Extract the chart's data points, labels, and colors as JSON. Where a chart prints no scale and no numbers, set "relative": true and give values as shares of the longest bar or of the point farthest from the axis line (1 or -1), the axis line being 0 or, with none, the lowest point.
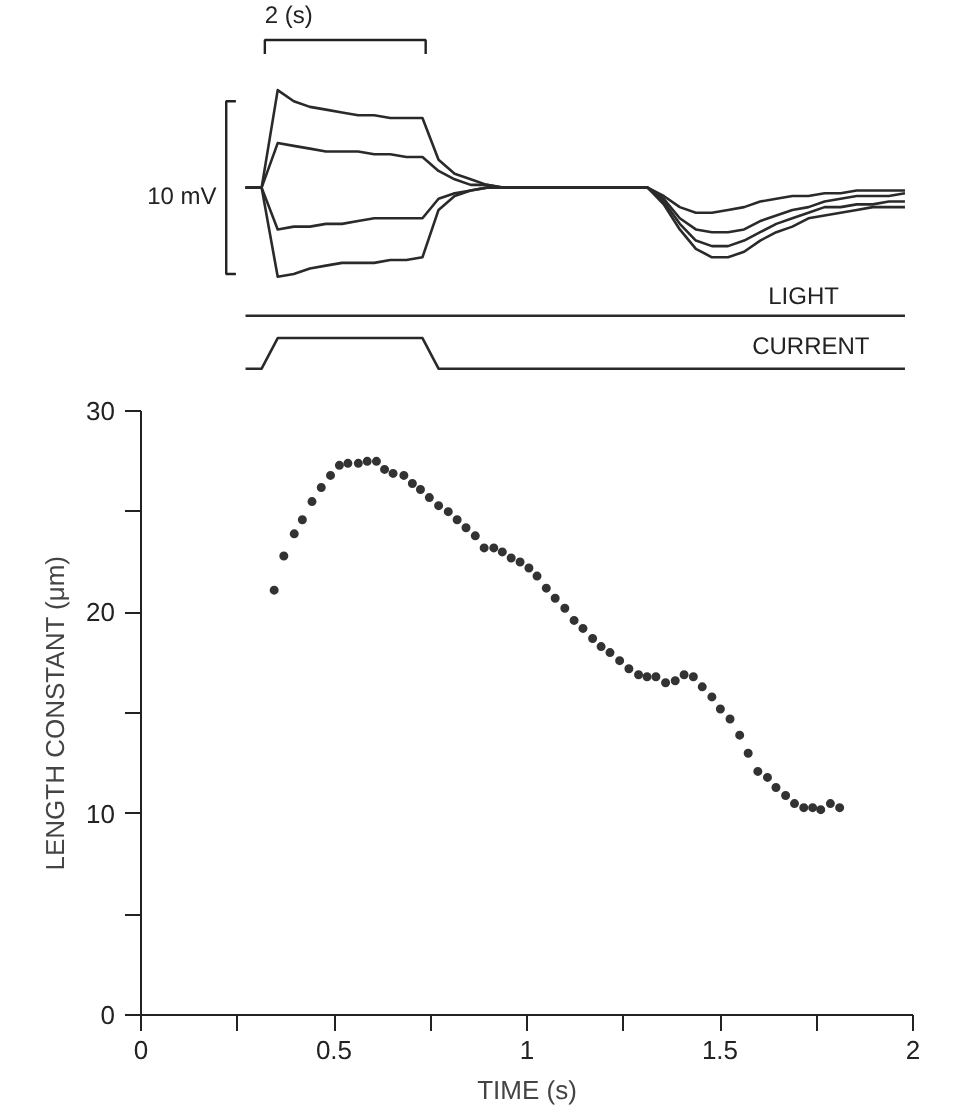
{
  "chart_data": [
    {
      "type": "line",
      "relative": true,
      "categories": [
        null,
        null,
        null,
        null,
        null,
        null,
        null,
        null,
        null,
        null,
        null,
        null,
        null,
        null,
        null,
        null,
        null,
        null,
        null,
        null,
        null,
        null,
        null,
        null,
        null,
        null,
        null,
        null,
        null,
        null,
        null,
        null,
        null,
        null,
        null,
        null,
        null,
        null,
        null,
        null,
        null,
        null
      ],
      "series": [
        {
          "color": "#2a2a2a",
          "values": [
            0.65,
            0.65,
            1,
            0.96,
            0.94,
            0.93,
            0.92,
            0.91,
            0.91,
            0.9,
            0.9,
            0.9,
            0.75,
            0.7,
            0.68,
            0.66,
            0.65,
            0.65,
            0.65,
            0.65,
            0.65,
            0.65,
            0.65,
            0.65,
            0.65,
            0.65,
            0.62,
            0.58,
            0.56,
            0.56,
            0.57,
            0.58,
            0.6,
            0.61,
            0.62,
            0.62,
            0.63,
            0.63,
            0.64,
            0.64,
            0.64,
            0.64
          ]
        },
        {
          "color": "#2a2a2a",
          "values": [
            0.65,
            0.65,
            0.81,
            0.8,
            0.79,
            0.78,
            0.78,
            0.78,
            0.77,
            0.77,
            0.76,
            0.76,
            0.71,
            0.68,
            0.66,
            0.66,
            0.65,
            0.65,
            0.65,
            0.65,
            0.65,
            0.65,
            0.65,
            0.65,
            0.65,
            0.65,
            0.61,
            0.54,
            0.5,
            0.49,
            0.49,
            0.5,
            0.53,
            0.55,
            0.57,
            0.58,
            0.6,
            0.61,
            0.62,
            0.62,
            0.62,
            0.63
          ]
        },
        {
          "color": "#2a2a2a",
          "values": [
            0.65,
            0.65,
            0.5,
            0.51,
            0.51,
            0.52,
            0.52,
            0.53,
            0.54,
            0.54,
            0.54,
            0.54,
            0.61,
            0.63,
            0.64,
            0.65,
            0.65,
            0.65,
            0.65,
            0.65,
            0.65,
            0.65,
            0.65,
            0.65,
            0.65,
            0.65,
            0.6,
            0.52,
            0.46,
            0.44,
            0.44,
            0.46,
            0.49,
            0.52,
            0.54,
            0.56,
            0.58,
            0.58,
            0.59,
            0.59,
            0.6,
            0.6
          ]
        },
        {
          "color": "#2a2a2a",
          "values": [
            0.65,
            0.65,
            0.33,
            0.34,
            0.36,
            0.37,
            0.38,
            0.38,
            0.38,
            0.39,
            0.39,
            0.4,
            0.57,
            0.62,
            0.64,
            0.65,
            0.65,
            0.65,
            0.65,
            0.65,
            0.65,
            0.65,
            0.65,
            0.65,
            0.65,
            0.65,
            0.59,
            0.5,
            0.43,
            0.4,
            0.4,
            0.42,
            0.46,
            0.49,
            0.51,
            0.54,
            0.55,
            0.56,
            0.57,
            0.58,
            0.58,
            0.58
          ]
        },
        {
          "color": "#2a2a2a",
          "values": [
            0.19,
            0.19,
            0.19,
            0.19,
            0.19,
            0.19,
            0.19,
            0.19,
            0.19,
            0.19,
            0.19,
            0.19,
            0.19,
            0.19,
            0.19,
            0.19,
            0.19,
            0.19,
            0.19,
            0.19,
            0.19,
            0.19,
            0.19,
            0.19,
            0.19,
            0.19,
            0.19,
            0.19,
            0.19,
            0.19,
            0.19,
            0.19,
            0.19,
            0.19,
            0.19,
            0.19,
            0.19,
            0.19,
            0.19,
            0.19,
            0.19,
            0.19
          ]
        },
        {
          "color": "#2a2a2a",
          "values": [
            0,
            0,
            0.11,
            0.11,
            0.11,
            0.11,
            0.11,
            0.11,
            0.11,
            0.11,
            0.11,
            0.11,
            0,
            0,
            0,
            0,
            0,
            0,
            0,
            0,
            0,
            0,
            0,
            0,
            0,
            0,
            0,
            0,
            0,
            0,
            0,
            0,
            0,
            0,
            0,
            0,
            0,
            0,
            0,
            0,
            0,
            0
          ]
        }
      ],
      "annotations": [
        "2 (s)",
        "10 mV",
        "LIGHT",
        "CURRENT"
      ]
    },
    {
      "type": "scatter",
      "xlabel": "TIME (s)",
      "ylabel": "LENGTH CONSTANT (μm)",
      "marker": "circle",
      "color": "#333333",
      "xlim": [
        0,
        2
      ],
      "ylim": [
        0,
        30
      ],
      "xticks": [
        0,
        {
          "value": 0.25,
          "label": null
        },
        0.5,
        {
          "value": 0.75,
          "label": null
        },
        1,
        {
          "value": 1.25,
          "label": null
        },
        1.5,
        {
          "value": 1.75,
          "label": null
        },
        2
      ],
      "yticks": [
        0,
        {
          "value": 5,
          "label": null
        },
        10,
        {
          "value": 15,
          "label": null
        },
        20,
        {
          "value": 25,
          "label": null
        },
        30
      ],
      "x": [
        0.345,
        0.37,
        0.397,
        0.418,
        0.443,
        0.467,
        0.491,
        0.514,
        0.536,
        0.563,
        0.586,
        0.61,
        0.631,
        0.653,
        0.681,
        0.703,
        0.724,
        0.747,
        0.771,
        0.796,
        0.819,
        0.842,
        0.866,
        0.889,
        0.914,
        0.936,
        0.959,
        0.982,
        1.005,
        1.026,
        1.05,
        1.073,
        1.098,
        1.122,
        1.145,
        1.17,
        1.192,
        1.215,
        1.24,
        1.264,
        1.289,
        1.311,
        1.334,
        1.359,
        1.384,
        1.407,
        1.431,
        1.454,
        1.479,
        1.501,
        1.526,
        1.551,
        1.573,
        1.598,
        1.623,
        1.645,
        1.67,
        1.693,
        1.717,
        1.74,
        1.761,
        1.786,
        1.81
      ],
      "values": [
        21.1,
        22.8,
        23.9,
        24.6,
        25.5,
        26.2,
        26.8,
        27.3,
        27.4,
        27.4,
        27.5,
        27.5,
        27.1,
        26.9,
        26.8,
        26.4,
        26.1,
        25.7,
        25.3,
        25.0,
        24.6,
        24.2,
        23.8,
        23.2,
        23.2,
        23.0,
        22.7,
        22.5,
        22.2,
        21.8,
        21.2,
        20.7,
        20.2,
        19.6,
        19.2,
        18.7,
        18.3,
        18.0,
        17.6,
        17.2,
        16.9,
        16.8,
        16.8,
        16.5,
        16.6,
        16.9,
        16.8,
        16.3,
        15.8,
        15.2,
        14.7,
        13.9,
        13.0,
        12.1,
        11.8,
        11.3,
        10.9,
        10.5,
        10.3,
        10.3,
        10.2,
        10.5,
        10.3
      ]
    }
  ]
}
